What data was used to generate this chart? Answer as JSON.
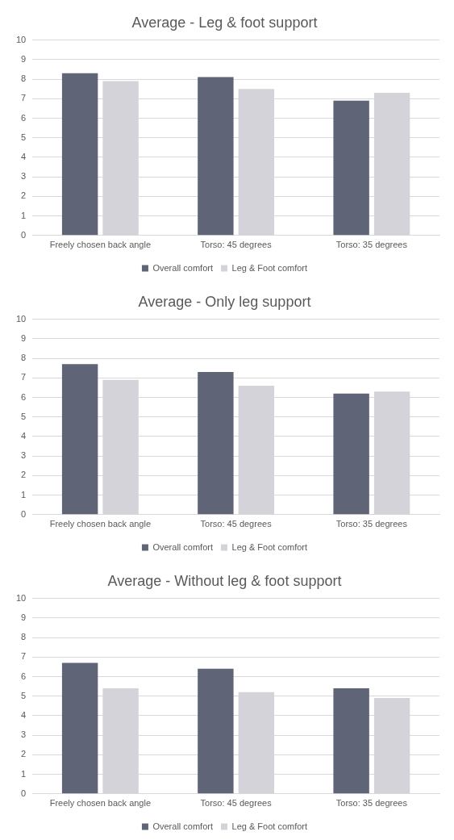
{
  "chart_data": [
    {
      "type": "bar",
      "title": "Average - Leg & foot support",
      "categories": [
        "Freely chosen back angle",
        "Torso: 45 degrees",
        "Torso: 35 degrees"
      ],
      "series": [
        {
          "name": "Overall comfort",
          "color": "#5f6476",
          "values": [
            8.3,
            8.1,
            6.9
          ]
        },
        {
          "name": "Leg & Foot comfort",
          "color": "#d5d3da",
          "values": [
            7.9,
            7.5,
            7.3
          ]
        }
      ],
      "ylim": [
        0,
        10
      ],
      "yticks": [
        0,
        1,
        2,
        3,
        4,
        5,
        6,
        7,
        8,
        9,
        10
      ],
      "grid": "y",
      "legend": "bottom"
    },
    {
      "type": "bar",
      "title": "Average - Only leg support",
      "categories": [
        "Freely chosen back angle",
        "Torso: 45 degrees",
        "Torso: 35 degrees"
      ],
      "series": [
        {
          "name": "Overall comfort",
          "color": "#5f6476",
          "values": [
            7.7,
            7.3,
            6.2
          ]
        },
        {
          "name": "Leg & Foot comfort",
          "color": "#d5d3da",
          "values": [
            6.9,
            6.6,
            6.3
          ]
        }
      ],
      "ylim": [
        0,
        10
      ],
      "yticks": [
        0,
        1,
        2,
        3,
        4,
        5,
        6,
        7,
        8,
        9,
        10
      ],
      "grid": "y",
      "legend": "bottom"
    },
    {
      "type": "bar",
      "title": "Average - Without leg & foot support",
      "categories": [
        "Freely chosen back angle",
        "Torso: 45 degrees",
        "Torso: 35 degrees"
      ],
      "series": [
        {
          "name": "Overall comfort",
          "color": "#5f6476",
          "values": [
            6.7,
            6.4,
            5.4
          ]
        },
        {
          "name": "Leg & Foot comfort",
          "color": "#d5d3da",
          "values": [
            5.4,
            5.2,
            4.9
          ]
        }
      ],
      "ylim": [
        0,
        10
      ],
      "yticks": [
        0,
        1,
        2,
        3,
        4,
        5,
        6,
        7,
        8,
        9,
        10
      ],
      "grid": "y",
      "legend": "bottom"
    }
  ]
}
